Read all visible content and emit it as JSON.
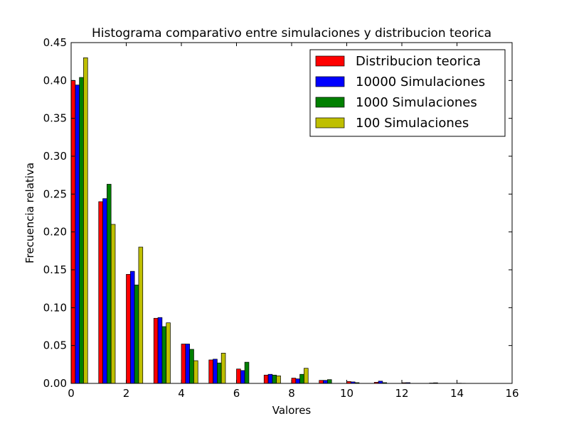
{
  "chart_data": {
    "type": "bar",
    "title": "Histograma comparativo entre simulaciones y distribucion teorica",
    "xlabel": "Valores",
    "ylabel": "Frecuencia relativa",
    "xlim": [
      0,
      16
    ],
    "ylim": [
      0,
      0.45
    ],
    "xticks": [
      "0",
      "2",
      "4",
      "6",
      "8",
      "10",
      "12",
      "14",
      "16"
    ],
    "yticks": [
      "0.00",
      "0.05",
      "0.10",
      "0.15",
      "0.20",
      "0.25",
      "0.30",
      "0.35",
      "0.40",
      "0.45"
    ],
    "grid": false,
    "legend_position": "top-right",
    "x": [
      0,
      1,
      2,
      3,
      4,
      5,
      6,
      7,
      8,
      9,
      10,
      11,
      12,
      13,
      14
    ],
    "series": [
      {
        "name": "Distribucion teorica",
        "color": "#ff0000",
        "values": [
          0.4,
          0.24,
          0.144,
          0.086,
          0.052,
          0.031,
          0.019,
          0.011,
          0.007,
          0.004,
          0.0025,
          0.0015,
          0.0009,
          0.0005,
          0.0003
        ]
      },
      {
        "name": "10000 Simulaciones",
        "color": "#0000ff",
        "values": [
          0.394,
          0.244,
          0.148,
          0.087,
          0.052,
          0.032,
          0.017,
          0.012,
          0.006,
          0.004,
          0.002,
          0.003,
          0.001,
          0.0008,
          0.0002
        ]
      },
      {
        "name": "1000 Simulaciones",
        "color": "#008000",
        "values": [
          0.404,
          0.263,
          0.13,
          0.075,
          0.045,
          0.027,
          0.028,
          0.011,
          0.012,
          0.005,
          0.001,
          0.001,
          0.0,
          0.0,
          0.0
        ]
      },
      {
        "name": "100 Simulaciones",
        "color": "#bfbf00",
        "values": [
          0.43,
          0.21,
          0.18,
          0.08,
          0.03,
          0.04,
          0.0,
          0.01,
          0.02,
          0.0,
          0.0,
          0.0,
          0.0,
          0.0,
          0.0
        ]
      }
    ]
  }
}
